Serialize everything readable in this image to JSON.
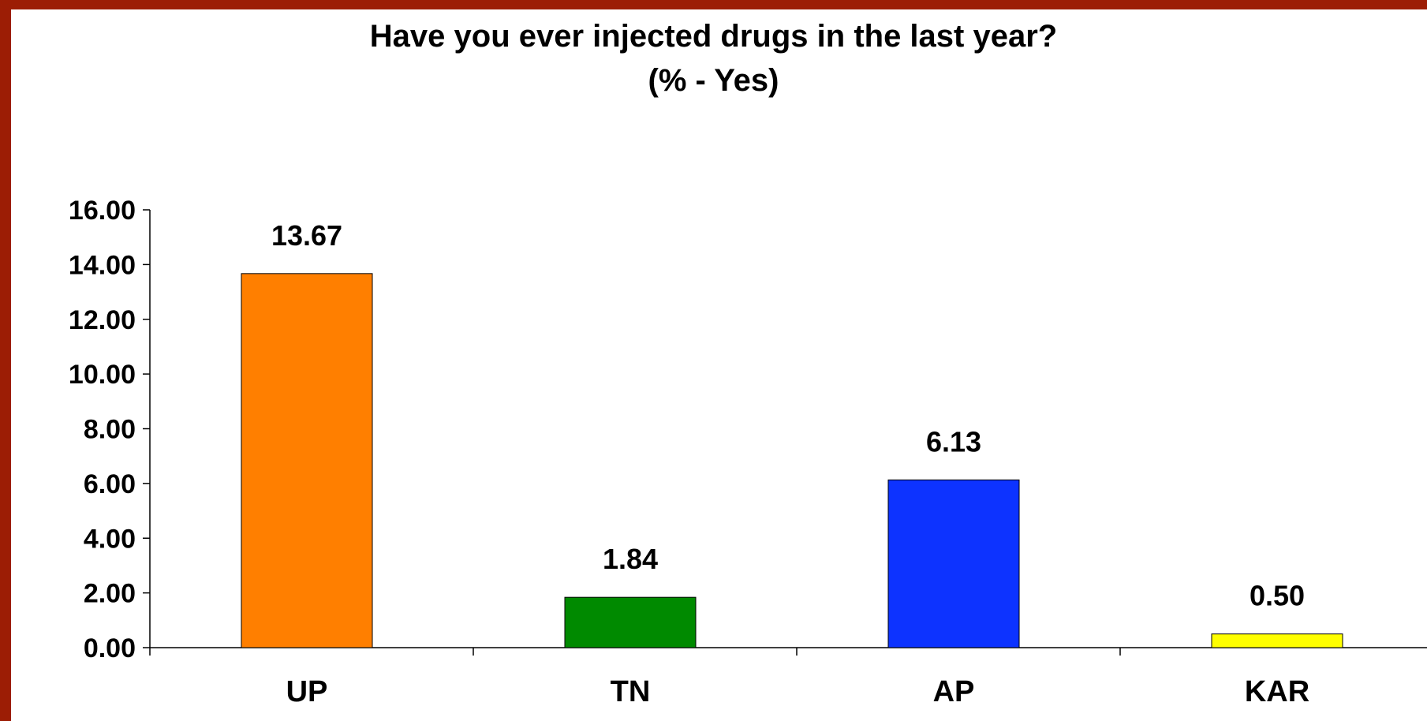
{
  "chart_data": {
    "type": "bar",
    "title": "Have you ever injected drugs in the last year?",
    "subtitle": "(% - Yes)",
    "categories": [
      "UP",
      "TN",
      "AP",
      "KAR"
    ],
    "values": [
      13.67,
      1.84,
      6.13,
      0.5
    ],
    "value_labels": [
      "13.67",
      "1.84",
      "6.13",
      "0.50"
    ],
    "colors": [
      "#ff7f00",
      "#008a00",
      "#0d33ff",
      "#ffff00"
    ],
    "ylim": [
      0,
      16
    ],
    "yticks": [
      "0.00",
      "2.00",
      "4.00",
      "6.00",
      "8.00",
      "10.00",
      "12.00",
      "14.00",
      "16.00"
    ],
    "xlabel": "",
    "ylabel": "",
    "grid": false,
    "legend": "none"
  },
  "colors": {
    "border": "#9c1d05",
    "background": "#ffffff"
  }
}
